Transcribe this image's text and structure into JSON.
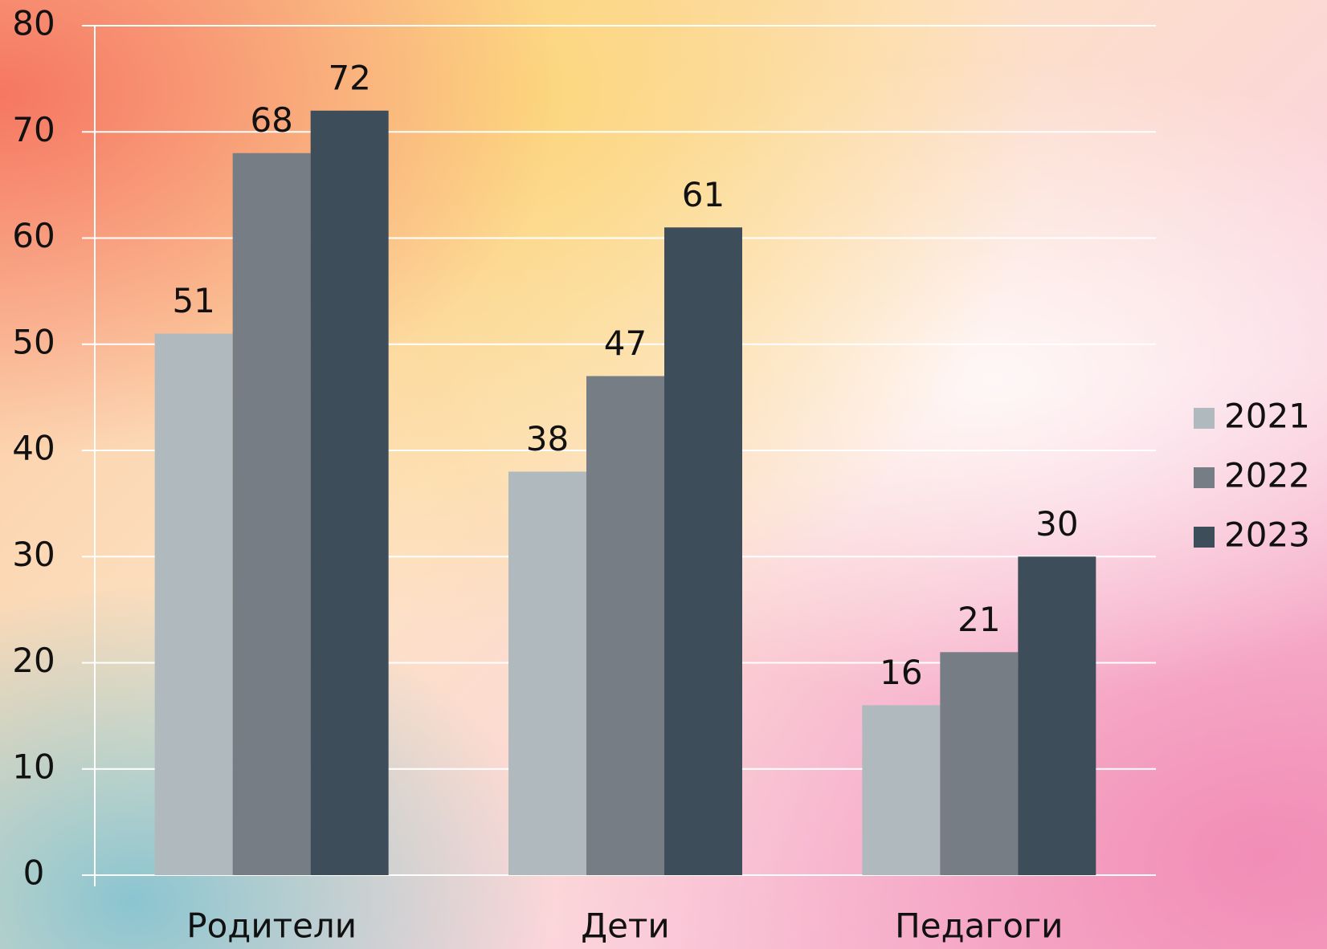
{
  "chart_data": {
    "type": "bar",
    "categories": [
      "Родители",
      "Дети",
      "Педагоги"
    ],
    "series": [
      {
        "name": "2021",
        "color": "#b0b9be",
        "values": [
          51,
          38,
          16
        ]
      },
      {
        "name": "2022",
        "color": "#767d84",
        "values": [
          68,
          47,
          21
        ]
      },
      {
        "name": "2023",
        "color": "#3d4d5a",
        "values": [
          72,
          61,
          30
        ]
      }
    ],
    "ylim": [
      0,
      80
    ],
    "yticks": [
      0,
      10,
      20,
      30,
      40,
      50,
      60,
      70,
      80
    ],
    "grid": true,
    "legend": "right"
  }
}
